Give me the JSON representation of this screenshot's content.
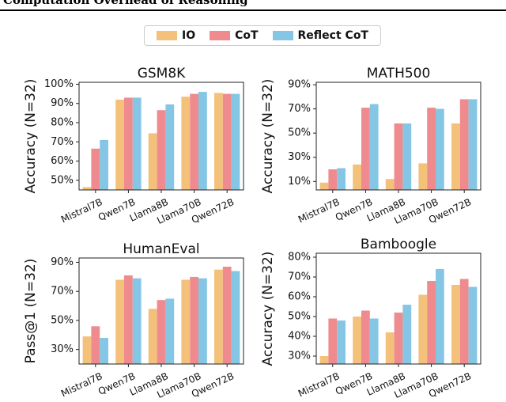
{
  "header": {
    "title": "Computation Overhead of Reasoning"
  },
  "legend": {
    "items": [
      {
        "label": "IO",
        "color": "#F4C17A"
      },
      {
        "label": "CoT",
        "color": "#EF8B8E"
      },
      {
        "label": "Reflect CoT",
        "color": "#86C6E5"
      }
    ]
  },
  "chart_data": [
    {
      "type": "bar",
      "title": "GSM8K",
      "ylabel": "Accuracy (N=32)",
      "categories": [
        "Mistral7B",
        "Qwen7B",
        "Llama8B",
        "Llama70B",
        "Qwen72B"
      ],
      "yticks": [
        50,
        60,
        70,
        80,
        90,
        100
      ],
      "ytick_labels": [
        "50%",
        "60%",
        "70%",
        "80%",
        "90%",
        "100%"
      ],
      "ylim": [
        45,
        101
      ],
      "series": [
        {
          "name": "IO",
          "values": [
            46.5,
            92.0,
            74.5,
            93.5,
            95.5
          ]
        },
        {
          "name": "CoT",
          "values": [
            66.5,
            93.0,
            86.5,
            95.0,
            95.0
          ]
        },
        {
          "name": "Reflect CoT",
          "values": [
            71.0,
            93.0,
            89.5,
            96.0,
            95.0
          ]
        }
      ]
    },
    {
      "type": "bar",
      "title": "MATH500",
      "ylabel": "Accuracy (N=32)",
      "categories": [
        "Mistral7B",
        "Qwen7B",
        "Llama8B",
        "Llama70B",
        "Qwen72B"
      ],
      "yticks": [
        10,
        30,
        50,
        70,
        90
      ],
      "ytick_labels": [
        "10%",
        "30%",
        "50%",
        "70%",
        "90%"
      ],
      "ylim": [
        3,
        92
      ],
      "series": [
        {
          "name": "IO",
          "values": [
            9,
            24,
            12,
            25,
            58
          ]
        },
        {
          "name": "CoT",
          "values": [
            20,
            71,
            58,
            71,
            78
          ]
        },
        {
          "name": "Reflect CoT",
          "values": [
            21,
            74,
            58,
            70,
            78
          ]
        }
      ]
    },
    {
      "type": "bar",
      "title": "HumanEval",
      "ylabel": "Pass@1 (N=32)",
      "categories": [
        "Mistral7B",
        "Qwen7B",
        "Llama8B",
        "Llama70B",
        "Qwen72B"
      ],
      "yticks": [
        30,
        50,
        70,
        90
      ],
      "ytick_labels": [
        "30%",
        "50%",
        "70%",
        "90%"
      ],
      "ylim": [
        20,
        93
      ],
      "series": [
        {
          "name": "IO",
          "values": [
            39,
            78,
            58,
            78,
            85
          ]
        },
        {
          "name": "CoT",
          "values": [
            46,
            81,
            64,
            80,
            87
          ]
        },
        {
          "name": "Reflect CoT",
          "values": [
            38,
            79,
            65,
            79,
            84
          ]
        }
      ]
    },
    {
      "type": "bar",
      "title": "Bamboogle",
      "ylabel": "Accuracy (N=32)",
      "categories": [
        "Mistral7B",
        "Qwen7B",
        "Llama8B",
        "Llama70B",
        "Qwen72B"
      ],
      "yticks": [
        30,
        40,
        50,
        60,
        70,
        80
      ],
      "ytick_labels": [
        "30%",
        "40%",
        "50%",
        "60%",
        "70%",
        "80%"
      ],
      "ylim": [
        26,
        82
      ],
      "series": [
        {
          "name": "IO",
          "values": [
            30,
            50,
            42,
            61,
            66
          ]
        },
        {
          "name": "CoT",
          "values": [
            49,
            53,
            52,
            68,
            69
          ]
        },
        {
          "name": "Reflect CoT",
          "values": [
            48,
            49,
            56,
            74,
            65
          ]
        }
      ]
    }
  ]
}
